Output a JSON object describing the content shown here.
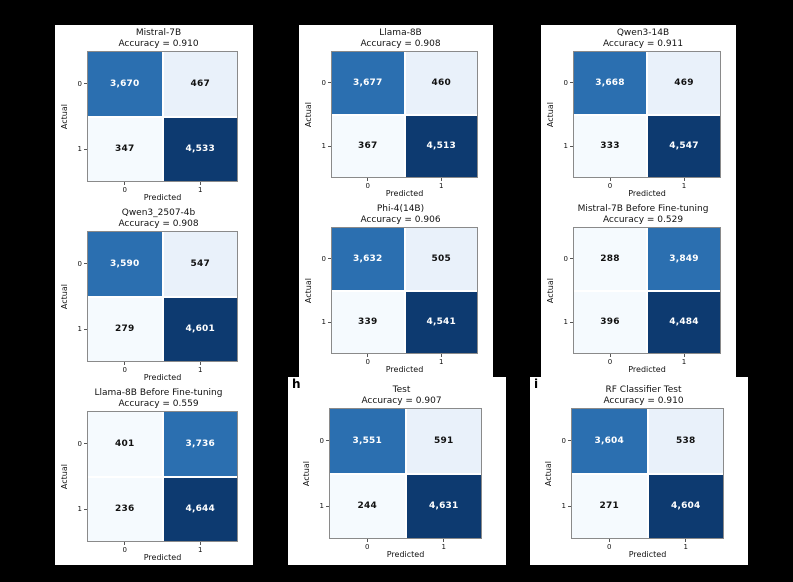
{
  "figure": {
    "background": "#000000",
    "panel_background": "#ffffff",
    "spine_color": "#8a8a8a",
    "text_color": "#111111"
  },
  "colors": {
    "cell_dark": "#0d3a70",
    "cell_mid": "#2b6fb0",
    "cell_light": "#e9f1fa",
    "cell_lighter": "#f5fafe",
    "cell_text_on_dark": "#ffffff",
    "cell_text_on_light": "#111111"
  },
  "chart_data": [
    {
      "type": "heatmap",
      "title": "Mistral-7B",
      "accuracy": 0.91,
      "accuracy_label": "Accuracy = 0.910",
      "xlabel": "Predicted",
      "ylabel": "Actual",
      "x_ticks": [
        "0",
        "1"
      ],
      "y_ticks": [
        "0",
        "1"
      ],
      "matrix": [
        [
          3670,
          467
        ],
        [
          347,
          4533
        ]
      ],
      "matrix_display": [
        [
          "3,670",
          "467"
        ],
        [
          "347",
          "4,533"
        ]
      ]
    },
    {
      "type": "heatmap",
      "title": "Llama-8B",
      "accuracy": 0.908,
      "accuracy_label": "Accuracy = 0.908",
      "xlabel": "Predicted",
      "ylabel": "Actual",
      "x_ticks": [
        "0",
        "1"
      ],
      "y_ticks": [
        "0",
        "1"
      ],
      "matrix": [
        [
          3677,
          460
        ],
        [
          367,
          4513
        ]
      ],
      "matrix_display": [
        [
          "3,677",
          "460"
        ],
        [
          "367",
          "4,513"
        ]
      ]
    },
    {
      "type": "heatmap",
      "title": "Qwen3-14B",
      "accuracy": 0.911,
      "accuracy_label": "Accuracy = 0.911",
      "xlabel": "Predicted",
      "ylabel": "Actual",
      "x_ticks": [
        "0",
        "1"
      ],
      "y_ticks": [
        "0",
        "1"
      ],
      "matrix": [
        [
          3668,
          469
        ],
        [
          333,
          4547
        ]
      ],
      "matrix_display": [
        [
          "3,668",
          "469"
        ],
        [
          "333",
          "4,547"
        ]
      ]
    },
    {
      "type": "heatmap",
      "title": "Qwen3_2507-4b",
      "accuracy": 0.908,
      "accuracy_label": "Accuracy = 0.908",
      "xlabel": "Predicted",
      "ylabel": "Actual",
      "x_ticks": [
        "0",
        "1"
      ],
      "y_ticks": [
        "0",
        "1"
      ],
      "matrix": [
        [
          3590,
          547
        ],
        [
          279,
          4601
        ]
      ],
      "matrix_display": [
        [
          "3,590",
          "547"
        ],
        [
          "279",
          "4,601"
        ]
      ]
    },
    {
      "type": "heatmap",
      "title": "Phi-4(14B)",
      "accuracy": 0.906,
      "accuracy_label": "Accuracy = 0.906",
      "xlabel": "Predicted",
      "ylabel": "Actual",
      "x_ticks": [
        "0",
        "1"
      ],
      "y_ticks": [
        "0",
        "1"
      ],
      "matrix": [
        [
          3632,
          505
        ],
        [
          339,
          4541
        ]
      ],
      "matrix_display": [
        [
          "3,632",
          "505"
        ],
        [
          "339",
          "4,541"
        ]
      ]
    },
    {
      "type": "heatmap",
      "title": "Mistral-7B Before Fine-tuning",
      "accuracy": 0.529,
      "accuracy_label": "Accuracy = 0.529",
      "xlabel": "Predicted",
      "ylabel": "Actual",
      "x_ticks": [
        "0",
        "1"
      ],
      "y_ticks": [
        "0",
        "1"
      ],
      "matrix": [
        [
          288,
          3849
        ],
        [
          396,
          4484
        ]
      ],
      "matrix_display": [
        [
          "288",
          "3,849"
        ],
        [
          "396",
          "4,484"
        ]
      ]
    },
    {
      "type": "heatmap",
      "title": "Llama-8B Before Fine-tuning",
      "accuracy": 0.559,
      "accuracy_label": "Accuracy = 0.559",
      "xlabel": "Predicted",
      "ylabel": "Actual",
      "x_ticks": [
        "0",
        "1"
      ],
      "y_ticks": [
        "0",
        "1"
      ],
      "matrix": [
        [
          401,
          3736
        ],
        [
          236,
          4644
        ]
      ],
      "matrix_display": [
        [
          "401",
          "3,736"
        ],
        [
          "236",
          "4,644"
        ]
      ]
    },
    {
      "type": "heatmap",
      "title": "Test",
      "accuracy": 0.907,
      "accuracy_label": "Accuracy = 0.907",
      "panel_label": "h",
      "xlabel": "Predicted",
      "ylabel": "Actual",
      "x_ticks": [
        "0",
        "1"
      ],
      "y_ticks": [
        "0",
        "1"
      ],
      "matrix": [
        [
          3551,
          591
        ],
        [
          244,
          4631
        ]
      ],
      "matrix_display": [
        [
          "3,551",
          "591"
        ],
        [
          "244",
          "4,631"
        ]
      ]
    },
    {
      "type": "heatmap",
      "title": "RF Classifier Test",
      "accuracy": 0.91,
      "accuracy_label": "Accuracy = 0.910",
      "panel_label": "i",
      "xlabel": "Predicted",
      "ylabel": "Actual",
      "x_ticks": [
        "0",
        "1"
      ],
      "y_ticks": [
        "0",
        "1"
      ],
      "matrix": [
        [
          3604,
          538
        ],
        [
          271,
          4604
        ]
      ],
      "matrix_display": [
        [
          "3,604",
          "538"
        ],
        [
          "271",
          "4,604"
        ]
      ]
    }
  ]
}
